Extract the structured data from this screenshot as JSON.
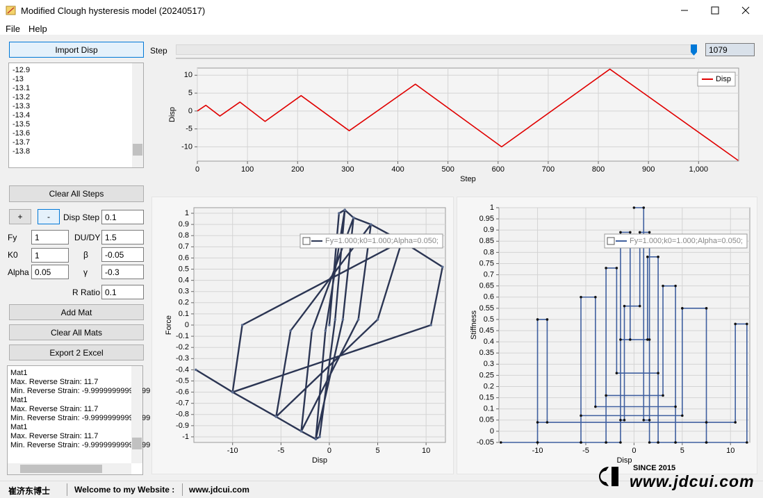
{
  "window": {
    "title": "Modified Clough hysteresis model (20240517)",
    "menu": [
      "File",
      "Help"
    ]
  },
  "left": {
    "import_button": "Import Disp",
    "list_items": [
      "-12.9",
      "-13",
      "-13.1",
      "-13.2",
      "-13.3",
      "-13.4",
      "-13.5",
      "-13.6",
      "-13.7",
      "-13.8"
    ],
    "clear_steps_button": "Clear All Steps",
    "plus_button": "+",
    "minus_button": "-",
    "params": [
      {
        "label": "Disp Step",
        "value": "0.1"
      },
      {
        "label": "Fy",
        "value": "1"
      },
      {
        "label": "DU/DY",
        "value": "1.5"
      },
      {
        "label": "K0",
        "value": "1"
      },
      {
        "label": "β",
        "value": "-0.05"
      },
      {
        "label": "Alpha",
        "value": "0.05"
      },
      {
        "label": "γ",
        "value": "-0.3"
      },
      {
        "label": "R Ratio",
        "value": "0.1"
      }
    ],
    "add_mat_button": "Add Mat",
    "clear_mats_button": "Clear All Mats",
    "export_button": "Export 2 Excel",
    "log": [
      "Mat1",
      "Max. Reverse Strain: 11.7",
      "Min. Reverse Strain: -9.99999999999999",
      "Mat1",
      "Max. Reverse Strain: 11.7",
      "Min. Reverse Strain: -9.99999999999999",
      "Mat1",
      "Max. Reverse Strain: 11.7",
      "Min. Reverse Strain: -9.99999999999999"
    ]
  },
  "step": {
    "label": "Step",
    "value": "1079"
  },
  "charts": [
    {
      "type": "line",
      "xlabel": "Step",
      "ylabel": "Disp",
      "x": [
        0,
        17,
        45,
        85,
        135,
        207,
        303,
        435,
        607,
        823,
        1079
      ],
      "series": [
        {
          "name": "Disp",
          "color": "#e00000",
          "values": [
            0,
            1.6,
            -1.4,
            2.5,
            -2.9,
            4.3,
            -5.5,
            7.5,
            -10,
            11.7,
            -13.8
          ]
        }
      ],
      "xlim": [
        0,
        1080
      ],
      "xticks": [
        0,
        100,
        200,
        300,
        400,
        500,
        600,
        700,
        800,
        900,
        {
          "value": 1000,
          "label": "1,000"
        }
      ],
      "ylim": [
        -14,
        12
      ],
      "yticks": [
        -10,
        -5,
        0,
        5,
        10
      ],
      "grid": true,
      "legend": "upper-right"
    },
    {
      "type": "line",
      "xlabel": "Disp",
      "ylabel": "Force",
      "x": [
        0,
        1,
        1.6,
        0.6,
        -1,
        -1.4,
        -0.4,
        1.6,
        2.5,
        1.4,
        -1.4,
        -2.9,
        -1.8,
        2.5,
        4.3,
        3,
        -2.9,
        -5.5,
        -4,
        4.3,
        7.5,
        5,
        -5.5,
        -10,
        -9,
        7.5,
        11.7,
        10.5,
        -10,
        -13.8
      ],
      "series": [
        {
          "name": "Fy=1.000;k0=1.000;Alpha=0.050;",
          "color": "#2b3553",
          "values": [
            0,
            1,
            1.03,
            0.05,
            -1,
            -1.02,
            -0.05,
            1.03,
            0.96,
            0.05,
            -1.02,
            -0.95,
            -0.05,
            0.96,
            0.9,
            0.05,
            -0.95,
            -0.82,
            -0.05,
            0.9,
            0.75,
            0.05,
            -0.82,
            -0.6,
            0,
            0.75,
            0.52,
            0,
            -0.6,
            -0.4
          ]
        }
      ],
      "xlim": [
        -14,
        12
      ],
      "xticks": [
        -10,
        -5,
        0,
        5,
        10
      ],
      "ylim": [
        -1.05,
        1.05
      ],
      "yticks": [
        -1,
        -0.9,
        -0.8,
        -0.7,
        -0.6,
        -0.5,
        -0.4,
        -0.3,
        -0.2,
        -0.1,
        0,
        0.1,
        0.2,
        0.3,
        0.4,
        0.5,
        0.6,
        0.7,
        0.8,
        0.9,
        1
      ],
      "grid": true,
      "legend": "upper-right"
    },
    {
      "type": "line",
      "xlabel": "Disp",
      "ylabel": "Stiffness",
      "x": [
        0,
        1,
        1,
        1.6,
        1.6,
        0.6,
        0.6,
        -1,
        -1,
        -1.4,
        -1.4,
        -0.4,
        -0.4,
        1.6,
        1.6,
        2.5,
        2.5,
        1.4,
        1.4,
        -1.4,
        -1.4,
        -2.9,
        -2.9,
        -1.8,
        -1.8,
        2.5,
        2.5,
        4.3,
        4.3,
        3,
        3,
        -2.9,
        -2.9,
        -5.5,
        -5.5,
        -4,
        -4,
        4.3,
        4.3,
        7.5,
        7.5,
        5,
        5,
        -5.5,
        -5.5,
        -10,
        -10,
        -9,
        -9,
        7.5,
        7.5,
        11.7,
        11.7,
        10.5,
        10.5,
        -10,
        -10,
        -13.8
      ],
      "series": [
        {
          "name": "Fy=1.000;k0=1.000;Alpha=0.050;",
          "color": "#3f5f9f",
          "values": [
            1,
            1,
            0.05,
            0.05,
            0.89,
            0.89,
            0.56,
            0.56,
            0.05,
            0.05,
            0.89,
            0.89,
            0.41,
            0.41,
            -0.05,
            -0.05,
            0.78,
            0.78,
            0.41,
            0.41,
            -0.05,
            -0.05,
            0.73,
            0.73,
            0.26,
            0.26,
            -0.05,
            -0.05,
            0.65,
            0.65,
            0.16,
            0.16,
            -0.05,
            -0.05,
            0.6,
            0.6,
            0.11,
            0.11,
            -0.05,
            -0.05,
            0.55,
            0.55,
            0.07,
            0.07,
            -0.05,
            -0.05,
            0.5,
            0.5,
            0.04,
            0.04,
            -0.05,
            -0.05,
            0.48,
            0.48,
            0.04,
            0.04,
            -0.05,
            -0.05
          ]
        }
      ],
      "xlim": [
        -14,
        12
      ],
      "xticks": [
        -10,
        -5,
        0,
        5,
        10
      ],
      "ylim": [
        -0.05,
        1.0
      ],
      "yticks": [
        -0.05,
        0,
        0.05,
        0.1,
        0.15,
        0.2,
        0.25,
        0.3,
        0.35,
        0.4,
        0.45,
        0.5,
        0.55,
        0.6,
        0.65,
        0.7,
        0.75,
        0.8,
        0.85,
        0.9,
        0.95,
        1
      ],
      "grid": true,
      "legend": "upper-right"
    }
  ],
  "status": [
    "崔济东博士",
    "Welcome to my Website :",
    "www.jdcui.com"
  ],
  "logo": {
    "since": "SINCE 2015",
    "site": "www.jdcui.com"
  }
}
